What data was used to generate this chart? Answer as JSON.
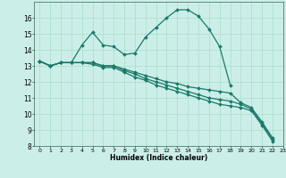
{
  "title": "",
  "xlabel": "Humidex (Indice chaleur)",
  "ylabel": "",
  "background_color": "#cceee8",
  "grid_color": "#aaddcc",
  "line_color": "#1a7a6a",
  "xlim": [
    -0.5,
    23
  ],
  "ylim": [
    8,
    17
  ],
  "x_ticks": [
    0,
    1,
    2,
    3,
    4,
    5,
    6,
    7,
    8,
    9,
    10,
    11,
    12,
    13,
    14,
    15,
    16,
    17,
    18,
    19,
    20,
    21,
    22,
    23
  ],
  "y_ticks": [
    8,
    9,
    10,
    11,
    12,
    13,
    14,
    15,
    16
  ],
  "line1_x": [
    0,
    1,
    2,
    3,
    4,
    5,
    6,
    7,
    8,
    9,
    10,
    11,
    12,
    13,
    14,
    15,
    16,
    17,
    18
  ],
  "line1_y": [
    13.3,
    13.0,
    13.2,
    13.2,
    14.3,
    15.1,
    14.3,
    14.2,
    13.7,
    13.8,
    14.8,
    15.4,
    16.0,
    16.5,
    16.5,
    16.1,
    15.3,
    14.2,
    11.8
  ],
  "line2_x": [
    0,
    1,
    2,
    3,
    4,
    5,
    6,
    7,
    8,
    9,
    10,
    11,
    12,
    13,
    14,
    15,
    16,
    17,
    18,
    19,
    20,
    21,
    22
  ],
  "line2_y": [
    13.3,
    13.0,
    13.2,
    13.2,
    13.2,
    13.2,
    13.0,
    13.0,
    12.8,
    12.6,
    12.4,
    12.2,
    12.0,
    11.9,
    11.7,
    11.6,
    11.5,
    11.4,
    11.3,
    10.7,
    10.4,
    9.5,
    8.5
  ],
  "line3_x": [
    0,
    1,
    2,
    3,
    4,
    5,
    6,
    7,
    8,
    9,
    10,
    11,
    12,
    13,
    14,
    15,
    16,
    17,
    18,
    19,
    20,
    21,
    22
  ],
  "line3_y": [
    13.3,
    13.0,
    13.2,
    13.2,
    13.2,
    13.2,
    13.0,
    13.0,
    12.7,
    12.5,
    12.2,
    12.0,
    11.8,
    11.6,
    11.4,
    11.2,
    11.0,
    10.9,
    10.8,
    10.6,
    10.3,
    9.4,
    8.4
  ],
  "line4_x": [
    0,
    1,
    2,
    3,
    4,
    5,
    6,
    7,
    8,
    9,
    10,
    11,
    12,
    13,
    14,
    15,
    16,
    17,
    18,
    19,
    20,
    21,
    22
  ],
  "line4_y": [
    13.3,
    13.0,
    13.2,
    13.2,
    13.2,
    13.1,
    12.9,
    12.9,
    12.6,
    12.3,
    12.1,
    11.8,
    11.6,
    11.4,
    11.2,
    11.0,
    10.8,
    10.6,
    10.5,
    10.4,
    10.2,
    9.3,
    8.3
  ]
}
